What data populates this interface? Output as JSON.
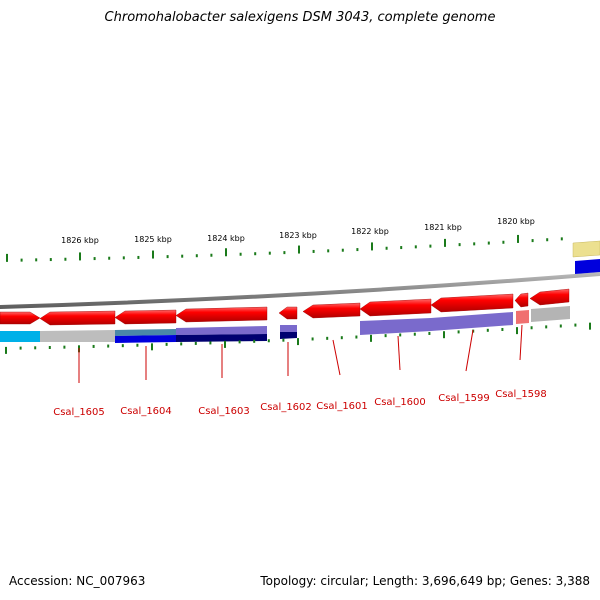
{
  "title": "Chromohalobacter salexigens DSM 3043, complete genome",
  "accession": "Accession: NC_007963",
  "summary": "Topology: circular; Length: 3,696,649 bp; Genes: 3,388",
  "ruler_labels": [
    "1826 kbp",
    "1825 kbp",
    "1824 kbp",
    "1823 kbp",
    "1822 kbp",
    "1821 kbp",
    "1820 kbp"
  ],
  "gene_labels": [
    "Csal_1605",
    "Csal_1604",
    "Csal_1603",
    "Csal_1602",
    "Csal_1601",
    "Csal_1600",
    "Csal_1599",
    "Csal_1598"
  ],
  "colors": {
    "gene": "#ee0000",
    "gene_light": "#f07070",
    "tick": "#1a7a1a",
    "backbone": "#808080",
    "label": "#cc0000",
    "cyan": "#00b0e8",
    "blue": "#0000dd",
    "lavender": "#7a6acc",
    "navy": "#000070",
    "grey": "#b4b4b4",
    "yellow": "#ece090"
  }
}
